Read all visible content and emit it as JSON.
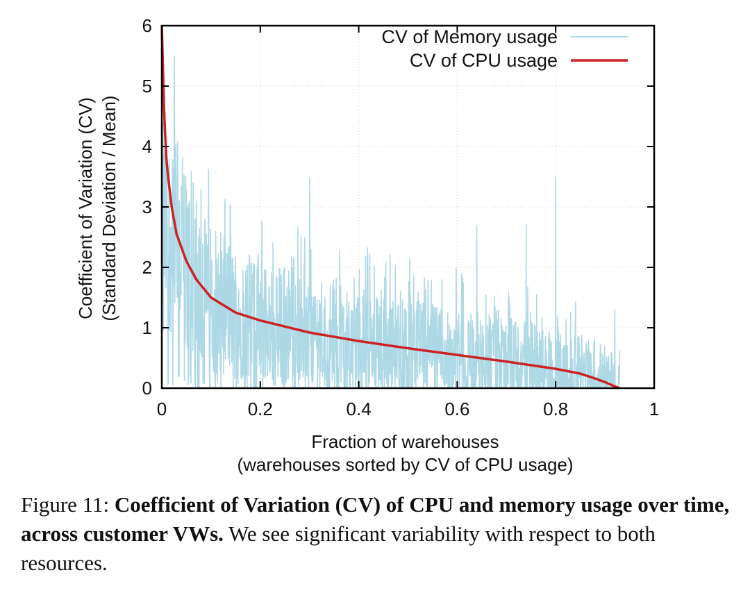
{
  "chart_data": {
    "type": "line",
    "title": "",
    "xlabel": "Fraction of warehouses",
    "xlabel2": "(warehouses sorted by CV of CPU usage)",
    "ylabel": "Coefficient of Variation (CV)",
    "ylabel2": "(Standard Deviation / Mean)",
    "xlim": [
      0,
      1
    ],
    "ylim": [
      0,
      6
    ],
    "xticks": [
      "0",
      "0.2",
      "0.4",
      "0.6",
      "0.8",
      "1"
    ],
    "yticks": [
      "0",
      "1",
      "2",
      "3",
      "4",
      "5",
      "6"
    ],
    "grid": true,
    "legend_position": "top-right",
    "series": [
      {
        "name": "CV of Memory usage",
        "color": "#add8e6",
        "style": "noisy-line",
        "x_range": [
          0,
          0.93
        ],
        "notable_peaks": [
          [
            0.025,
            5.5
          ],
          [
            0.06,
            3.6
          ],
          [
            0.3,
            3.5
          ],
          [
            0.8,
            3.5
          ],
          [
            0.08,
            3.3
          ],
          [
            0.64,
            2.7
          ],
          [
            0.74,
            2.7
          ],
          [
            0.92,
            1.3
          ]
        ]
      },
      {
        "name": "CV of CPU usage",
        "color": "#cc2222",
        "style": "line",
        "x": [
          0,
          0.005,
          0.01,
          0.02,
          0.03,
          0.05,
          0.07,
          0.1,
          0.15,
          0.2,
          0.3,
          0.4,
          0.5,
          0.6,
          0.7,
          0.8,
          0.85,
          0.88,
          0.9,
          0.92,
          0.93
        ],
        "y": [
          6.0,
          4.5,
          3.7,
          3.0,
          2.55,
          2.1,
          1.8,
          1.5,
          1.25,
          1.12,
          0.92,
          0.78,
          0.66,
          0.55,
          0.44,
          0.32,
          0.24,
          0.16,
          0.1,
          0.03,
          0.0
        ]
      }
    ]
  },
  "caption": {
    "prefix": "Figure 11: ",
    "bold": "Coefficient of Variation (CV) of CPU and memory usage over time, across customer VWs.",
    "rest": " We see significant variability with respect to both resources."
  }
}
